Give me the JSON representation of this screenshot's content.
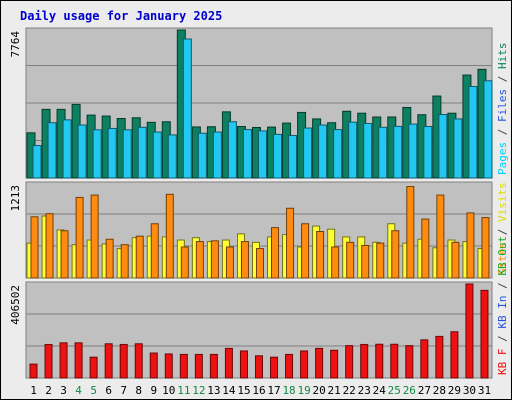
{
  "title": "Daily usage for January 2025",
  "colors": {
    "hits": "#0c8060",
    "files": "#22c8f0",
    "pages": "#00d0ff",
    "visits": "#ffff33",
    "sites": "#ff8c10",
    "kbin": "#2255dd",
    "kbout": "#22aa22",
    "kbf": "#ee1111",
    "weekend_day": "#118844",
    "weekday_day": "#000000",
    "panel_bg": "#c0c0c0"
  },
  "chart_data": [
    {
      "type": "bar",
      "name": "hits-files-pages",
      "ymax_label": "7764",
      "ylim": [
        0,
        7764
      ],
      "right_label": [
        {
          "text": "Pages",
          "color": "#00d0ff"
        },
        {
          "text": " / ",
          "color": "#444444"
        },
        {
          "text": "Files",
          "color": "#2255dd"
        },
        {
          "text": " / ",
          "color": "#444444"
        },
        {
          "text": "Hits",
          "color": "#0c8060"
        }
      ],
      "series": [
        {
          "name": "Hits",
          "values": [
            2370,
            3600,
            3600,
            3860,
            3300,
            3250,
            3120,
            3160,
            2920,
            2950,
            7764,
            2680,
            2690,
            3470,
            2700,
            2650,
            2670,
            2880,
            3440,
            3100,
            2900,
            3500,
            3400,
            3200,
            3200,
            3700,
            3320,
            4300,
            3400,
            5400,
            5700
          ]
        },
        {
          "name": "Files",
          "values": [
            1700,
            2900,
            3050,
            2780,
            2530,
            2600,
            2530,
            2660,
            2410,
            2260,
            7290,
            2350,
            2410,
            2950,
            2540,
            2470,
            2290,
            2230,
            2620,
            2780,
            2540,
            2930,
            2860,
            2660,
            2710,
            2830,
            2700,
            3330,
            3100,
            4800,
            5100
          ]
        }
      ]
    },
    {
      "type": "bar",
      "name": "visits-sites",
      "ymax_label": "1213",
      "ylim": [
        0,
        1213
      ],
      "right_label": [
        {
          "text": "Sites",
          "color": "#ff8c10"
        },
        {
          "text": " / ",
          "color": "#444444"
        },
        {
          "text": "Visits",
          "color": "#dddd00"
        }
      ],
      "series": [
        {
          "name": "Visits",
          "values": [
            450,
            800,
            620,
            430,
            490,
            440,
            380,
            520,
            540,
            530,
            490,
            520,
            470,
            490,
            570,
            460,
            530,
            560,
            400,
            670,
            630,
            530,
            530,
            460,
            700,
            450,
            500,
            390,
            490,
            470,
            380
          ]
        },
        {
          "name": "Sites",
          "values": [
            790,
            830,
            610,
            1040,
            1070,
            500,
            430,
            540,
            700,
            1080,
            400,
            470,
            480,
            400,
            470,
            380,
            650,
            900,
            700,
            600,
            400,
            460,
            420,
            450,
            610,
            1180,
            760,
            1070,
            460,
            840,
            780
          ]
        }
      ]
    },
    {
      "type": "bar",
      "name": "kb",
      "ymax_label": "406502",
      "ylim": [
        0,
        406502
      ],
      "right_label": [
        {
          "text": "KB F",
          "color": "#ee1111"
        },
        {
          "text": " / ",
          "color": "#444444"
        },
        {
          "text": "KB In",
          "color": "#2255dd"
        },
        {
          "text": " / ",
          "color": "#444444"
        },
        {
          "text": "KB Out",
          "color": "#22aa22"
        }
      ],
      "series": [
        {
          "name": "KB F",
          "values": [
            60000,
            145000,
            152000,
            152000,
            90000,
            148000,
            145000,
            148000,
            108000,
            104000,
            102000,
            102000,
            102000,
            128000,
            117000,
            96000,
            90000,
            102000,
            117000,
            128000,
            120000,
            140000,
            145000,
            146000,
            146000,
            140000,
            165000,
            180000,
            200000,
            406502,
            379000
          ]
        }
      ]
    }
  ],
  "days": [
    {
      "label": "1",
      "weekend": false
    },
    {
      "label": "2",
      "weekend": false
    },
    {
      "label": "3",
      "weekend": false
    },
    {
      "label": "4",
      "weekend": true
    },
    {
      "label": "5",
      "weekend": true
    },
    {
      "label": "6",
      "weekend": false
    },
    {
      "label": "7",
      "weekend": false
    },
    {
      "label": "8",
      "weekend": false
    },
    {
      "label": "9",
      "weekend": false
    },
    {
      "label": "10",
      "weekend": false
    },
    {
      "label": "11",
      "weekend": true
    },
    {
      "label": "12",
      "weekend": true
    },
    {
      "label": "13",
      "weekend": false
    },
    {
      "label": "14",
      "weekend": false
    },
    {
      "label": "15",
      "weekend": false
    },
    {
      "label": "16",
      "weekend": false
    },
    {
      "label": "17",
      "weekend": false
    },
    {
      "label": "18",
      "weekend": true
    },
    {
      "label": "19",
      "weekend": true
    },
    {
      "label": "20",
      "weekend": false
    },
    {
      "label": "21",
      "weekend": false
    },
    {
      "label": "22",
      "weekend": false
    },
    {
      "label": "23",
      "weekend": false
    },
    {
      "label": "24",
      "weekend": false
    },
    {
      "label": "25",
      "weekend": true
    },
    {
      "label": "26",
      "weekend": true
    },
    {
      "label": "27",
      "weekend": false
    },
    {
      "label": "28",
      "weekend": false
    },
    {
      "label": "29",
      "weekend": false
    },
    {
      "label": "30",
      "weekend": false
    },
    {
      "label": "31",
      "weekend": false
    }
  ]
}
